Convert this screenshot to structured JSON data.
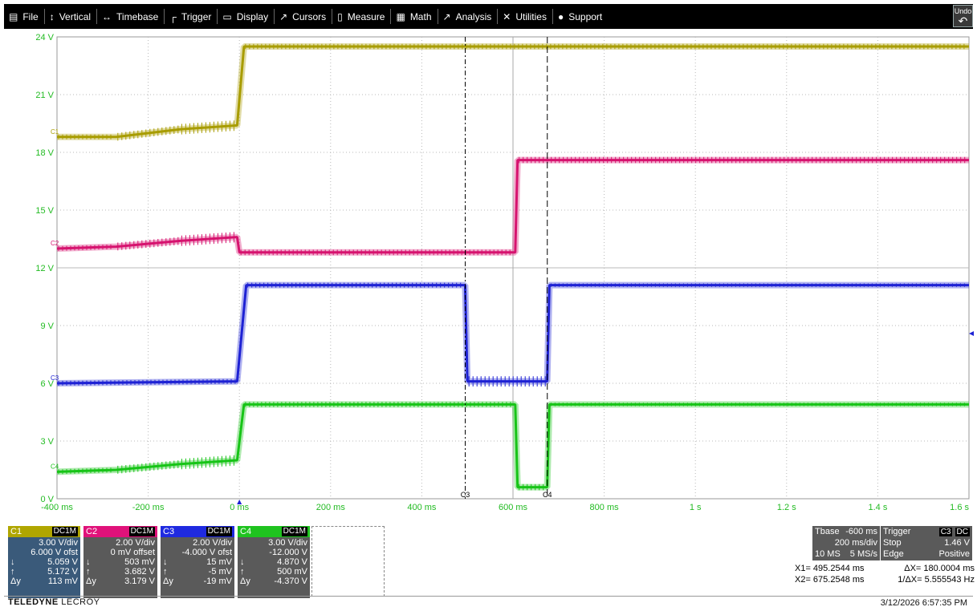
{
  "menu": [
    {
      "icon": "file-icon",
      "glyph": "▤",
      "label": "File"
    },
    {
      "icon": "vertical-icon",
      "glyph": "↕",
      "label": "Vertical"
    },
    {
      "icon": "timebase-icon",
      "glyph": "↔",
      "label": "Timebase"
    },
    {
      "icon": "trigger-icon",
      "glyph": "┌",
      "label": "Trigger"
    },
    {
      "icon": "display-icon",
      "glyph": "▭",
      "label": "Display"
    },
    {
      "icon": "cursors-icon",
      "glyph": "↗",
      "label": "Cursors"
    },
    {
      "icon": "measure-icon",
      "glyph": "▯",
      "label": "Measure"
    },
    {
      "icon": "math-icon",
      "glyph": "▦",
      "label": "Math"
    },
    {
      "icon": "analysis-icon",
      "glyph": "↗",
      "label": "Analysis"
    },
    {
      "icon": "utilities-icon",
      "glyph": "✕",
      "label": "Utilities"
    },
    {
      "icon": "support-icon",
      "glyph": "●",
      "label": "Support"
    }
  ],
  "undo_label": "Undo",
  "colors": {
    "c1": "#a89c00",
    "c2": "#d6136f",
    "c3": "#1e22d4",
    "c4": "#17c417",
    "grid": "#b9b9b9",
    "axis_text": "#22bb22"
  },
  "chart_data": {
    "type": "line",
    "ylabels": [
      "24 V",
      "21 V",
      "18 V",
      "15 V",
      "12 V",
      "9 V",
      "6 V",
      "3 V",
      "0 V"
    ],
    "yticks": [
      24,
      21,
      18,
      15,
      12,
      9,
      6,
      3,
      0
    ],
    "xlabels": [
      "-400 ms",
      "-200 ms",
      "0 ms",
      "200 ms",
      "400 ms",
      "600 ms",
      "800 ms",
      "1 s",
      "1.2 s",
      "1.4 s",
      "1.6 s"
    ],
    "xticks_ms": [
      -400,
      -200,
      0,
      200,
      400,
      600,
      800,
      1000,
      1200,
      1400,
      1600
    ],
    "xlim_ms": [
      -400,
      1600
    ],
    "ylim_v": [
      0,
      24
    ],
    "series": [
      {
        "name": "C1",
        "points_ms_v": [
          [
            -400,
            18.8
          ],
          [
            -270,
            18.8
          ],
          [
            -130,
            19.2
          ],
          [
            -5,
            19.4
          ],
          [
            10,
            23.5
          ],
          [
            1600,
            23.5
          ]
        ]
      },
      {
        "name": "C2",
        "points_ms_v": [
          [
            -400,
            13.0
          ],
          [
            -270,
            13.1
          ],
          [
            -130,
            13.4
          ],
          [
            -5,
            13.6
          ],
          [
            0,
            12.8
          ],
          [
            605,
            12.8
          ],
          [
            610,
            17.6
          ],
          [
            1600,
            17.6
          ]
        ]
      },
      {
        "name": "C3",
        "points_ms_v": [
          [
            -400,
            6.0
          ],
          [
            -5,
            6.1
          ],
          [
            15,
            11.1
          ],
          [
            495,
            11.1
          ],
          [
            500,
            6.1
          ],
          [
            675,
            6.1
          ],
          [
            680,
            11.1
          ],
          [
            1600,
            11.1
          ]
        ]
      },
      {
        "name": "C4",
        "points_ms_v": [
          [
            -400,
            1.4
          ],
          [
            -270,
            1.5
          ],
          [
            -130,
            1.8
          ],
          [
            -5,
            2.0
          ],
          [
            10,
            4.9
          ],
          [
            605,
            4.9
          ],
          [
            610,
            0.6
          ],
          [
            675,
            0.6
          ],
          [
            680,
            4.9
          ],
          [
            1600,
            4.9
          ]
        ]
      }
    ],
    "cursors_ms": [
      495.2544,
      675.2548
    ],
    "trace_markers": [
      "C1",
      "C2",
      "C3",
      "C4"
    ],
    "cursor_markers": [
      "C3",
      "C4"
    ]
  },
  "channels": [
    {
      "label": "C1",
      "coupling": "DC1M",
      "vdiv": "3.00 V/div",
      "offset": "6.000 V ofst",
      "down": "5.059 V",
      "up": "5.172 V",
      "dy": "113 mV",
      "dy_label": "Δy"
    },
    {
      "label": "C2",
      "coupling": "DC1M",
      "vdiv": "2.00 V/div",
      "offset": "0 mV offset",
      "down": "503 mV",
      "up": "3.682 V",
      "dy": "3.179 V",
      "dy_label": "Δy"
    },
    {
      "label": "C3",
      "coupling": "DC1M",
      "vdiv": "2.00 V/div",
      "offset": "-4.000 V ofst",
      "down": "15 mV",
      "up": "-5 mV",
      "dy": "-19 mV",
      "dy_label": "Δy"
    },
    {
      "label": "C4",
      "coupling": "DC1M",
      "vdiv": "3.00 V/div",
      "offset": "-12.000 V",
      "down": "4.870 V",
      "up": "500 mV",
      "dy": "-4.370 V",
      "dy_label": "Δy"
    }
  ],
  "tbase": {
    "label": "Tbase",
    "delay": "-600 ms",
    "rate": "200 ms/div",
    "samples": "10 MS",
    "srate": "5 MS/s"
  },
  "trigger": {
    "label": "Trigger",
    "src": "C3",
    "coup": "DC",
    "mode": "Stop",
    "level": "1.46 V",
    "type": "Edge",
    "slope": "Positive"
  },
  "cursor_readout": {
    "x1": "X1=  495.2544 ms",
    "dx": "ΔX=  180.0004 ms",
    "x2": "X2=  675.2548 ms",
    "inv": "1/ΔX=  5.555543 Hz"
  },
  "brand": {
    "main": "TELEDYNE",
    "sub": "LECROY"
  },
  "datetime": "3/12/2026 6:57:35 PM"
}
